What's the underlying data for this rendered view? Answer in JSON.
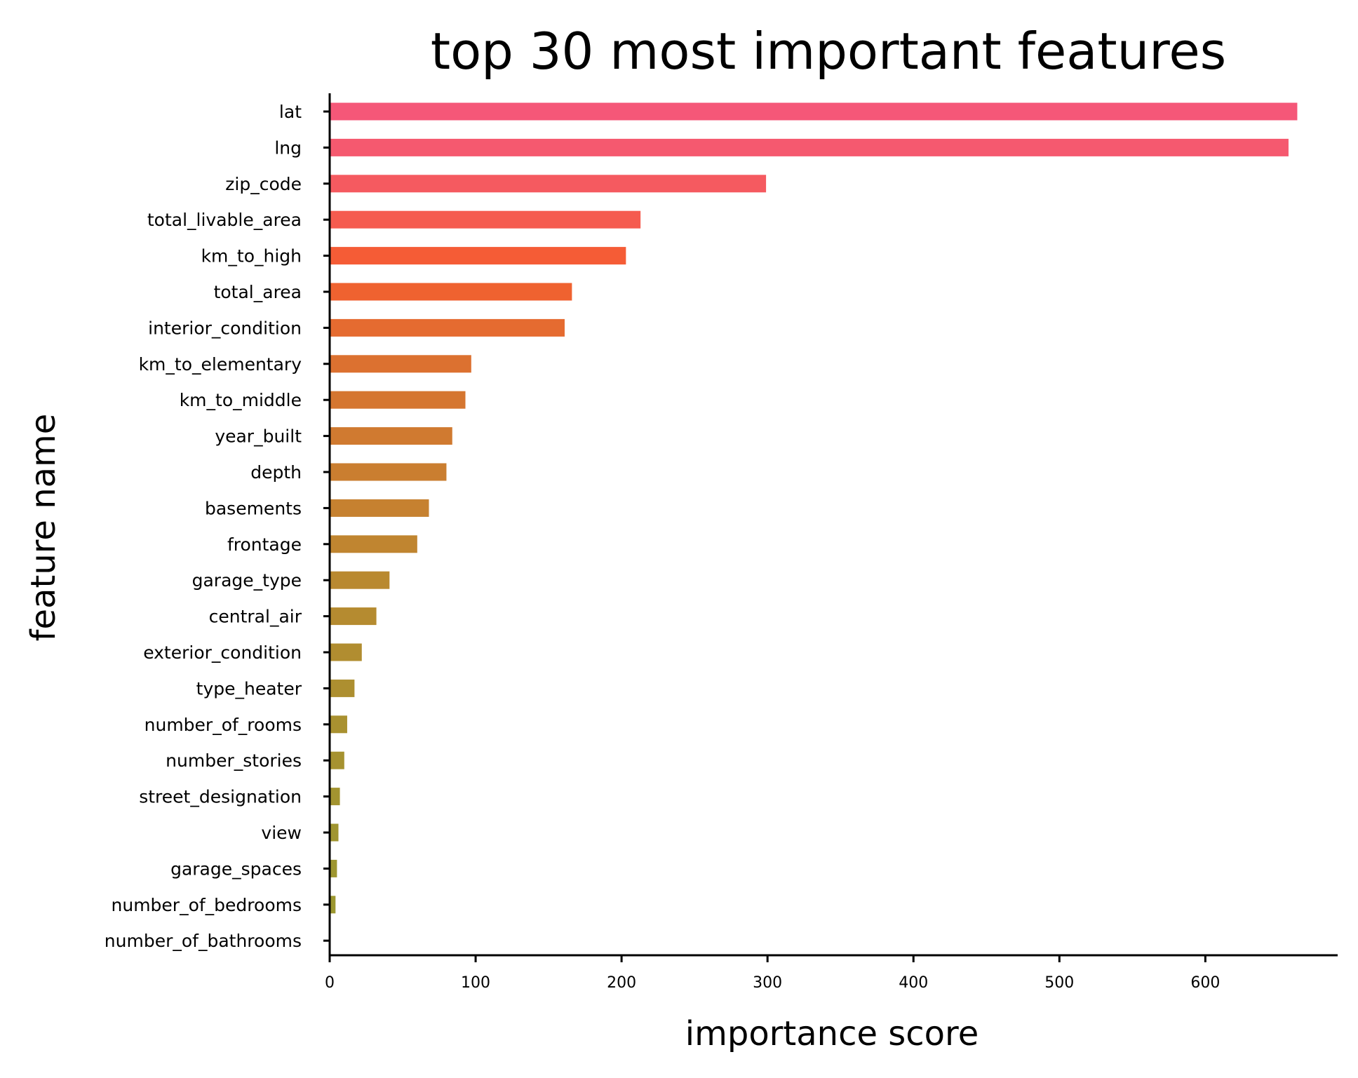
{
  "chart_data": {
    "type": "bar",
    "orientation": "horizontal",
    "title": "top 30 most important features",
    "xlabel": "importance score",
    "ylabel": "feature name",
    "categories": [
      "lat",
      "lng",
      "zip_code",
      "total_livable_area",
      "km_to_high",
      "total_area",
      "interior_condition",
      "km_to_elementary",
      "km_to_middle",
      "year_built",
      "depth",
      "basements",
      "frontage",
      "garage_type",
      "central_air",
      "exterior_condition",
      "type_heater",
      "number_of_rooms",
      "number_stories",
      "street_designation",
      "view",
      "garage_spaces",
      "number_of_bedrooms",
      "number_of_bathrooms"
    ],
    "values": [
      663,
      657,
      299,
      213,
      203,
      166,
      161,
      97,
      93,
      84,
      80,
      68,
      60,
      41,
      32,
      22,
      17,
      12,
      10,
      7,
      6,
      5,
      4,
      0
    ],
    "colors": [
      "#f55778",
      "#f5596f",
      "#f55a60",
      "#f55b4f",
      "#f55c36",
      "#ef6230",
      "#e56b30",
      "#dc7130",
      "#d57630",
      "#d07a30",
      "#ca7e30",
      "#c68130",
      "#c08530",
      "#b98930",
      "#b58b30",
      "#b18d30",
      "#ad8f30",
      "#a99130",
      "#a69230",
      "#a39430",
      "#a09530",
      "#9e9630",
      "#9c9730",
      "#9a9830"
    ],
    "xticks": [
      0,
      100,
      200,
      300,
      400,
      500,
      600
    ],
    "xlim": [
      0,
      697
    ],
    "grid": false,
    "legend": "none"
  }
}
